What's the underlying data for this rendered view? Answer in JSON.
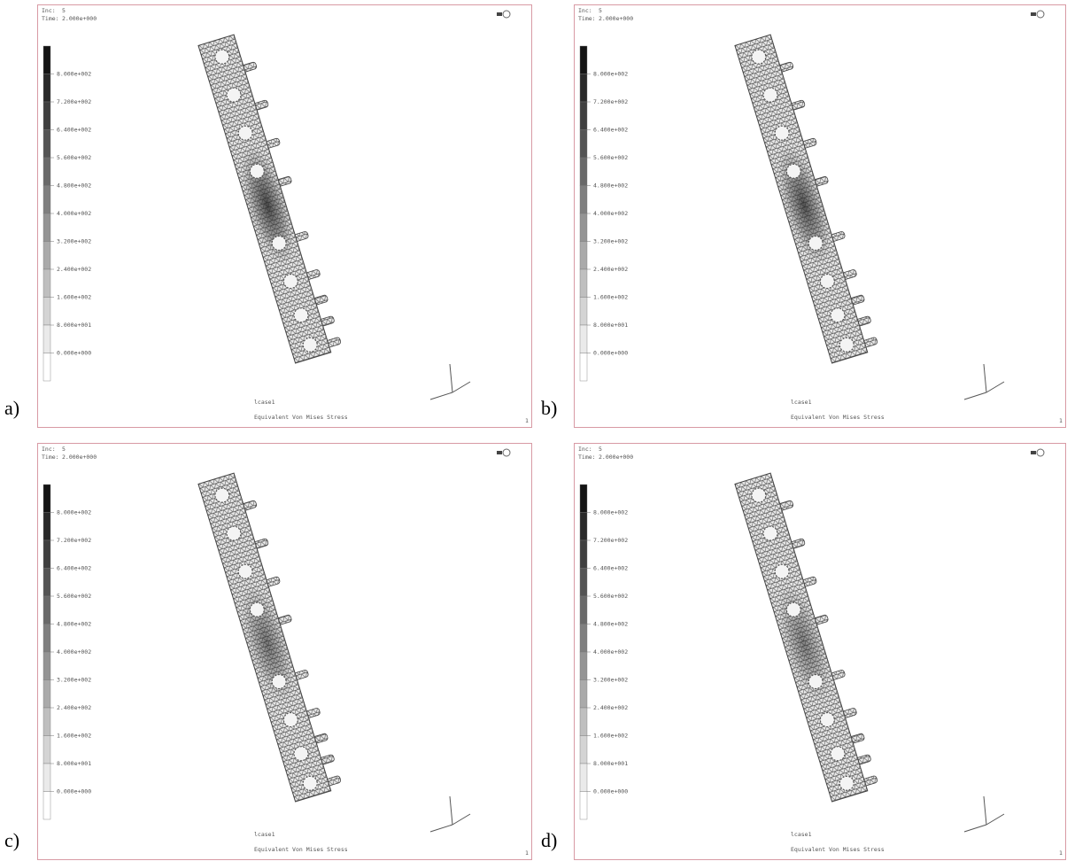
{
  "figure": {
    "panels": [
      {
        "label": "a)",
        "inc_label": "Inc:",
        "inc": 5,
        "time_label": "Time:",
        "time": "2.000e+000",
        "legend": [
          "8.000e+002",
          "7.200e+002",
          "6.400e+002",
          "5.600e+002",
          "4.800e+002",
          "4.000e+002",
          "3.200e+002",
          "2.400e+002",
          "1.600e+002",
          "8.000e+001",
          "0.000e+000"
        ],
        "load_case": "lcase1",
        "result": "Equivalent Von Mises Stress",
        "page": 1
      },
      {
        "label": "b)",
        "inc_label": "Inc:",
        "inc": 5,
        "time_label": "Time:",
        "time": "2.000e+000",
        "legend": [
          "8.000e+002",
          "7.200e+002",
          "6.400e+002",
          "5.600e+002",
          "4.800e+002",
          "4.000e+002",
          "3.200e+002",
          "2.400e+002",
          "1.600e+002",
          "8.000e+001",
          "0.000e+000"
        ],
        "load_case": "lcase1",
        "result": "Equivalent Von Mises Stress",
        "page": 1
      },
      {
        "label": "c)",
        "inc_label": "Inc:",
        "inc": 5,
        "time_label": "Time:",
        "time": "2.000e+000",
        "legend": [
          "8.000e+002",
          "7.200e+002",
          "6.400e+002",
          "5.600e+002",
          "4.800e+002",
          "4.000e+002",
          "3.200e+002",
          "2.400e+002",
          "1.600e+002",
          "8.000e+001",
          "0.000e+000"
        ],
        "load_case": "lcase1",
        "result": "Equivalent Von Mises Stress",
        "page": 1
      },
      {
        "label": "d)",
        "inc_label": "Inc:",
        "inc": 5,
        "time_label": "Time:",
        "time": "2.000e+000",
        "legend": [
          "8.000e+002",
          "7.200e+002",
          "6.400e+002",
          "5.600e+002",
          "4.800e+002",
          "4.000e+002",
          "3.200e+002",
          "2.400e+002",
          "1.600e+002",
          "8.000e+001",
          "0.000e+000"
        ],
        "load_case": "lcase1",
        "result": "Equivalent Von Mises Stress",
        "page": 1
      }
    ]
  }
}
